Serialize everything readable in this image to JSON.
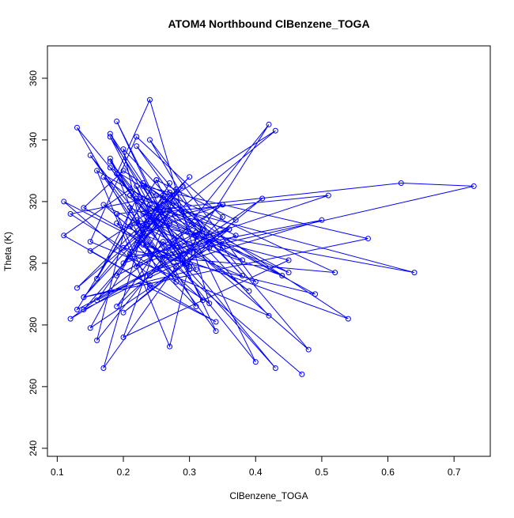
{
  "chart_data": {
    "type": "line",
    "title": "ATOM4 Northbound ClBenzene_TOGA",
    "x_label": "ClBenzene_TOGA",
    "y_label": "Theta (K)",
    "color": "#0000ff",
    "markers": true,
    "xlim": [
      0.0852,
      0.7548
    ],
    "ylim": [
      237.4,
      370.5
    ],
    "xticks": [
      0.1,
      0.2,
      0.3,
      0.4,
      0.5,
      0.6,
      0.7
    ],
    "yticks": [
      240,
      260,
      280,
      300,
      320,
      340,
      360
    ],
    "x": [
      0.22,
      0.25,
      0.18,
      0.31,
      0.14,
      0.27,
      0.35,
      0.21,
      0.16,
      0.42,
      0.29,
      0.19,
      0.24,
      0.33,
      0.12,
      0.26,
      0.38,
      0.2,
      0.23,
      0.47,
      0.17,
      0.3,
      0.25,
      0.13,
      0.36,
      0.22,
      0.28,
      0.4,
      0.15,
      0.26,
      0.73,
      0.62,
      0.19,
      0.24,
      0.34,
      0.11,
      0.21,
      0.45,
      0.27,
      0.18,
      0.32,
      0.23,
      0.54,
      0.2,
      0.14,
      0.29,
      0.37,
      0.25,
      0.16,
      0.22,
      0.64,
      0.31,
      0.19,
      0.26,
      0.43,
      0.13,
      0.24,
      0.35,
      0.21,
      0.28,
      0.17,
      0.39,
      0.23,
      0.51,
      0.2,
      0.27,
      0.15,
      0.33,
      0.22,
      0.48,
      0.25,
      0.18,
      0.3,
      0.11,
      0.24,
      0.41,
      0.2,
      0.36,
      0.26,
      0.14,
      0.57,
      0.23,
      0.29,
      0.19,
      0.34,
      0.22,
      0.44,
      0.16,
      0.27,
      0.31,
      0.21,
      0.38,
      0.25,
      0.13,
      0.3,
      0.2,
      0.49,
      0.24,
      0.17,
      0.28,
      0.35,
      0.22,
      0.15,
      0.42,
      0.26,
      0.19,
      0.32,
      0.23,
      0.52,
      0.21,
      0.27,
      0.14,
      0.37,
      0.25,
      0.18,
      0.3,
      0.22,
      0.45,
      0.2,
      0.28,
      0.16,
      0.33,
      0.24,
      0.4,
      0.19,
      0.26,
      0.12,
      0.35,
      0.23,
      0.29,
      0.21,
      0.5,
      0.25,
      0.18,
      0.31,
      0.22,
      0.43,
      0.27,
      0.15,
      0.24
    ],
    "values": [
      325,
      312,
      341,
      298,
      289,
      323,
      305,
      318,
      275,
      345,
      301,
      329,
      353,
      287,
      316,
      322,
      296,
      337,
      308,
      264,
      319,
      304,
      327,
      285,
      311,
      299,
      320,
      268,
      335,
      302,
      325,
      326,
      316,
      292,
      281,
      309,
      324,
      297,
      313,
      342,
      288,
      306,
      282,
      330,
      318,
      300,
      314,
      327,
      295,
      321,
      297,
      310,
      286,
      307,
      266,
      344,
      303,
      319,
      312,
      294,
      328,
      291,
      316,
      322,
      300,
      326,
      279,
      305,
      338,
      272,
      315,
      333,
      299,
      320,
      296,
      321,
      284,
      311,
      317,
      289,
      308,
      325,
      303,
      346,
      278,
      313,
      296,
      330,
      273,
      309,
      322,
      301,
      314,
      292,
      328,
      305,
      290,
      319,
      266,
      299,
      315,
      341,
      307,
      283,
      320,
      296,
      311,
      326,
      297,
      303,
      317,
      285,
      309,
      322,
      331,
      298,
      314,
      301,
      276,
      324,
      288,
      307,
      340,
      294,
      313,
      300,
      282,
      319,
      310,
      325,
      302,
      314,
      298,
      334,
      286,
      306,
      343,
      321,
      304,
      293
    ]
  }
}
